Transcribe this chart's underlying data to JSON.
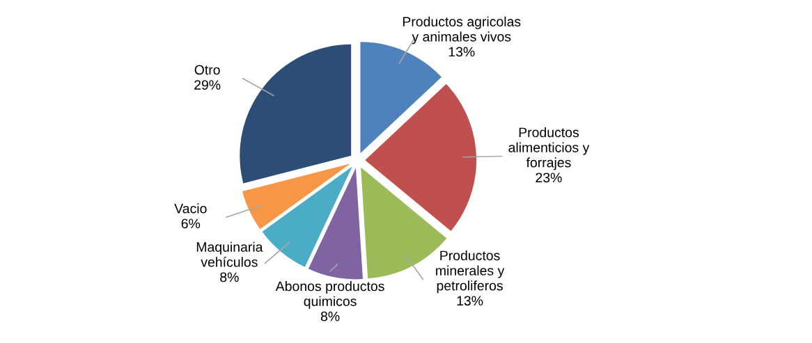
{
  "chart_data": {
    "type": "pie",
    "categories": [
      "Productos agricolas\ny animales vivos",
      "Productos\nalimenticios y\nforrajes",
      "Productos\nminerales y\npetroliferos",
      "Abonos productos\nquimicos",
      "Maquinaria\nvehículos",
      "Vacio",
      "Otro"
    ],
    "values": [
      13,
      23,
      13,
      8,
      8,
      6,
      29
    ],
    "value_labels": [
      "13%",
      "23%",
      "13%",
      "8%",
      "8%",
      "6%",
      "29%"
    ],
    "colors": [
      "#4f81bd",
      "#c0504d",
      "#9bbb59",
      "#8064a2",
      "#4bacc6",
      "#f79646",
      "#2c4d75"
    ],
    "legend": false
  }
}
